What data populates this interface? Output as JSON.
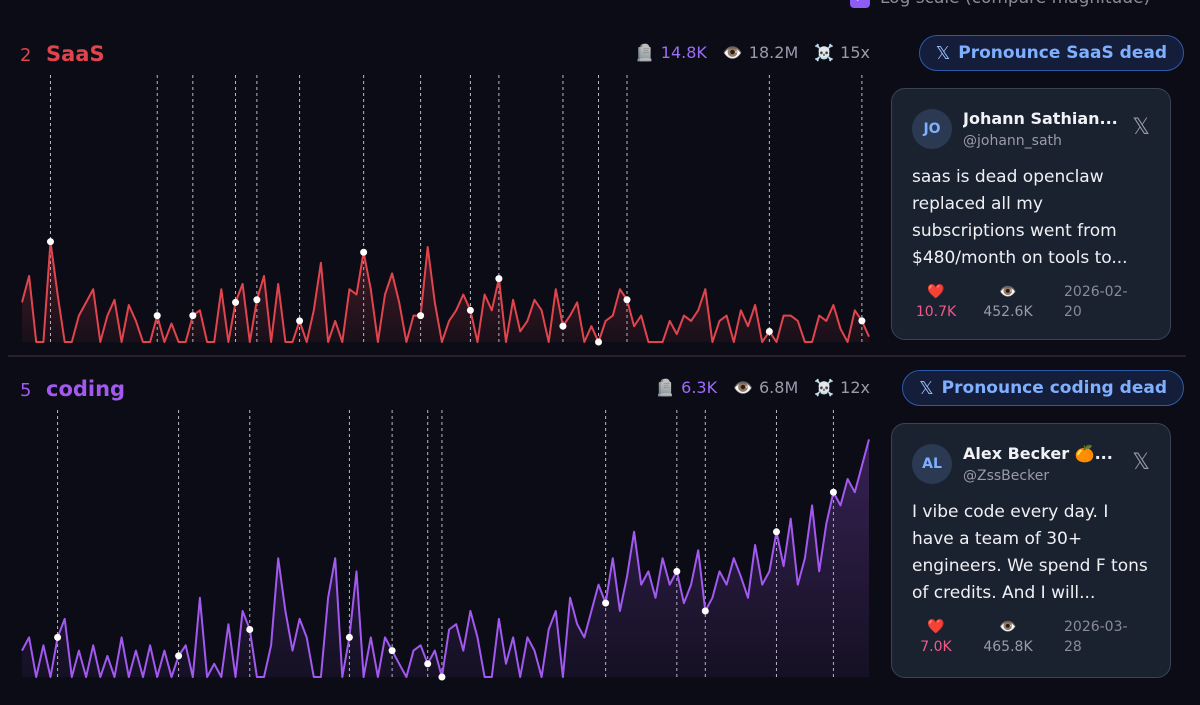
{
  "header": {
    "log_scale_label": "Log scale (compare magnitude)",
    "checkbox_mark": "✓"
  },
  "panels": [
    {
      "rank": "2",
      "name": "SaaS",
      "color": "#e0454e",
      "stats": {
        "graves": "14.8K",
        "views": "18.2M",
        "multiplier": "15x",
        "grave_icon": "🪦",
        "eye_icon": "👁️",
        "skull_icon": "☠️"
      },
      "button_label": "Pronounce SaaS dead",
      "x_symbol": "𝕏",
      "tweet": {
        "avatar": "JO",
        "name": "Johann Sathian...",
        "handle": "@johann_sath",
        "text": "saas is dead openclaw replaced all my subscriptions went from $480/month on tools to...",
        "like_icon": "❤️",
        "likes": "10.7K",
        "view_icon": "👁️",
        "views": "452.6K",
        "date": "2026-02-20"
      }
    },
    {
      "rank": "5",
      "name": "coding",
      "color": "#a259f0",
      "stats": {
        "graves": "6.3K",
        "views": "6.8M",
        "multiplier": "12x",
        "grave_icon": "🪦",
        "eye_icon": "👁️",
        "skull_icon": "☠️"
      },
      "button_label": "Pronounce coding dead",
      "x_symbol": "𝕏",
      "tweet": {
        "avatar": "AL",
        "name": "Alex Becker 🍊...",
        "handle": "@ZssBecker",
        "text": "I vibe code every day. I have a team of 30+ engineers. We spend F tons of credits. And I will...",
        "like_icon": "❤️",
        "likes": "7.0K",
        "view_icon": "👁️",
        "views": "465.8K",
        "date": "2026-03-28"
      }
    }
  ],
  "chart_data": [
    {
      "type": "area",
      "title": "SaaS",
      "x_range": [
        0,
        119
      ],
      "y_range": [
        0,
        100
      ],
      "values": [
        15,
        25,
        0,
        0,
        38,
        18,
        0,
        0,
        10,
        15,
        20,
        0,
        10,
        16,
        0,
        14,
        8,
        0,
        0,
        10,
        0,
        7,
        0,
        0,
        10,
        12,
        0,
        0,
        20,
        0,
        15,
        22,
        0,
        16,
        25,
        0,
        22,
        0,
        0,
        8,
        0,
        12,
        30,
        0,
        8,
        0,
        20,
        18,
        34,
        20,
        0,
        18,
        26,
        15,
        0,
        10,
        10,
        36,
        15,
        0,
        8,
        12,
        18,
        12,
        0,
        18,
        12,
        24,
        0,
        16,
        4,
        8,
        16,
        12,
        0,
        20,
        6,
        10,
        15,
        0,
        6,
        0,
        8,
        10,
        20,
        16,
        6,
        10,
        0,
        0,
        0,
        8,
        3,
        10,
        8,
        12,
        20,
        0,
        8,
        10,
        0,
        12,
        6,
        14,
        0,
        4,
        0,
        10,
        10,
        8,
        0,
        0,
        10,
        8,
        14,
        5,
        0,
        12,
        8,
        2
      ],
      "markers": [
        4,
        19,
        24,
        30,
        33,
        39,
        48,
        56,
        63,
        67,
        76,
        81,
        85,
        105,
        118
      ],
      "note": "values are relative (unlabeled y axis)"
    },
    {
      "type": "area",
      "title": "coding",
      "x_range": [
        0,
        119
      ],
      "y_range": [
        0,
        100
      ],
      "values": [
        10,
        15,
        0,
        12,
        0,
        15,
        22,
        0,
        10,
        0,
        12,
        0,
        8,
        0,
        15,
        0,
        10,
        0,
        12,
        0,
        10,
        0,
        8,
        12,
        0,
        30,
        0,
        5,
        0,
        20,
        0,
        25,
        18,
        0,
        0,
        12,
        45,
        25,
        10,
        22,
        15,
        0,
        0,
        30,
        45,
        0,
        15,
        40,
        0,
        15,
        0,
        15,
        10,
        5,
        0,
        10,
        12,
        5,
        10,
        0,
        18,
        20,
        10,
        25,
        15,
        0,
        0,
        22,
        5,
        15,
        0,
        15,
        10,
        0,
        18,
        25,
        0,
        30,
        20,
        15,
        25,
        35,
        28,
        45,
        25,
        38,
        55,
        35,
        40,
        30,
        45,
        35,
        40,
        28,
        35,
        48,
        25,
        30,
        40,
        35,
        45,
        38,
        30,
        50,
        35,
        40,
        55,
        42,
        60,
        35,
        45,
        65,
        40,
        58,
        70,
        65,
        75,
        70,
        80,
        90
      ],
      "markers": [
        5,
        22,
        32,
        46,
        52,
        57,
        59,
        82,
        92,
        96,
        106,
        114
      ],
      "note": "values are relative (unlabeled y axis)"
    }
  ]
}
